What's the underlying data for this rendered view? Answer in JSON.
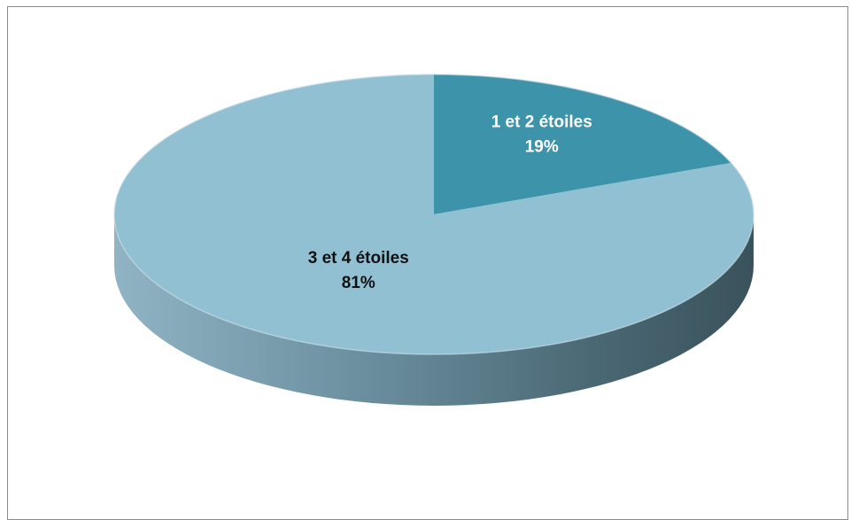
{
  "chart_data": {
    "type": "pie",
    "style": "3d",
    "title": "",
    "categories": [
      "1 et 2 étoiles",
      "3 et 4 étoiles"
    ],
    "values": [
      19,
      81
    ],
    "value_labels": [
      "19%",
      "81%"
    ],
    "colors": [
      "#3d93aa",
      "#92c0d3"
    ],
    "side_color": "#5c8a9e",
    "label_colors": [
      "#ffffff",
      "#111111"
    ],
    "legend": "none"
  }
}
